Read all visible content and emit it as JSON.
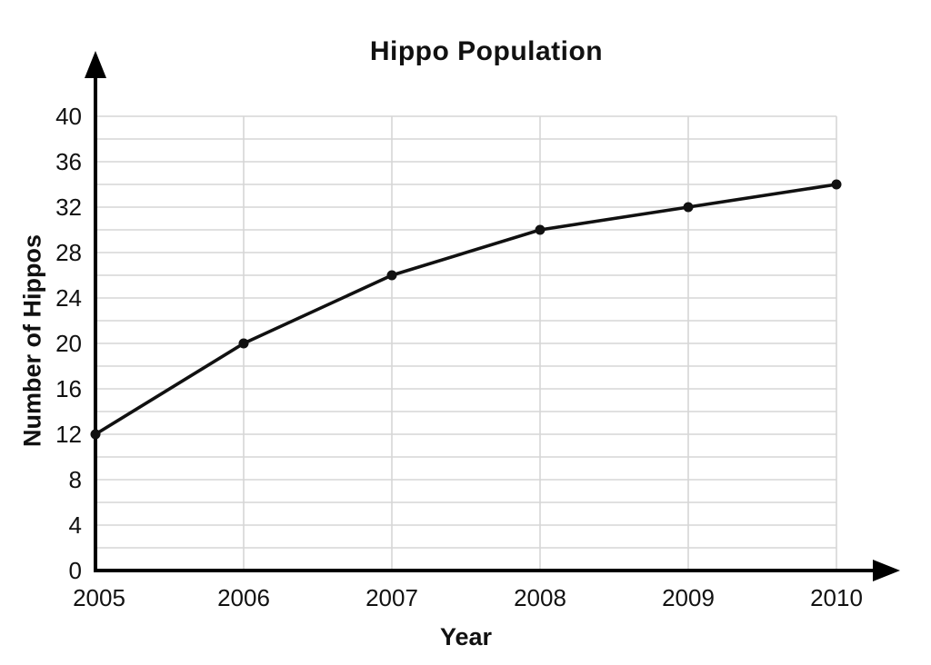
{
  "chart_data": {
    "type": "line",
    "title": "Hippo Population",
    "xlabel": "Year",
    "ylabel": "Number of Hippos",
    "categories": [
      "2005",
      "2006",
      "2007",
      "2008",
      "2009",
      "2010"
    ],
    "series": [
      {
        "name": "Hippo Population",
        "values": [
          12,
          20,
          26,
          30,
          32,
          34
        ]
      }
    ],
    "ylim": [
      0,
      40
    ],
    "ytick_step": 4,
    "grid_minor_step": 2,
    "grid": true,
    "legend": false,
    "marker": "circle",
    "colors": {
      "line": "#111111",
      "grid": "#d6d6d6",
      "axis": "#000000",
      "text": "#111111",
      "background": "#ffffff"
    }
  }
}
